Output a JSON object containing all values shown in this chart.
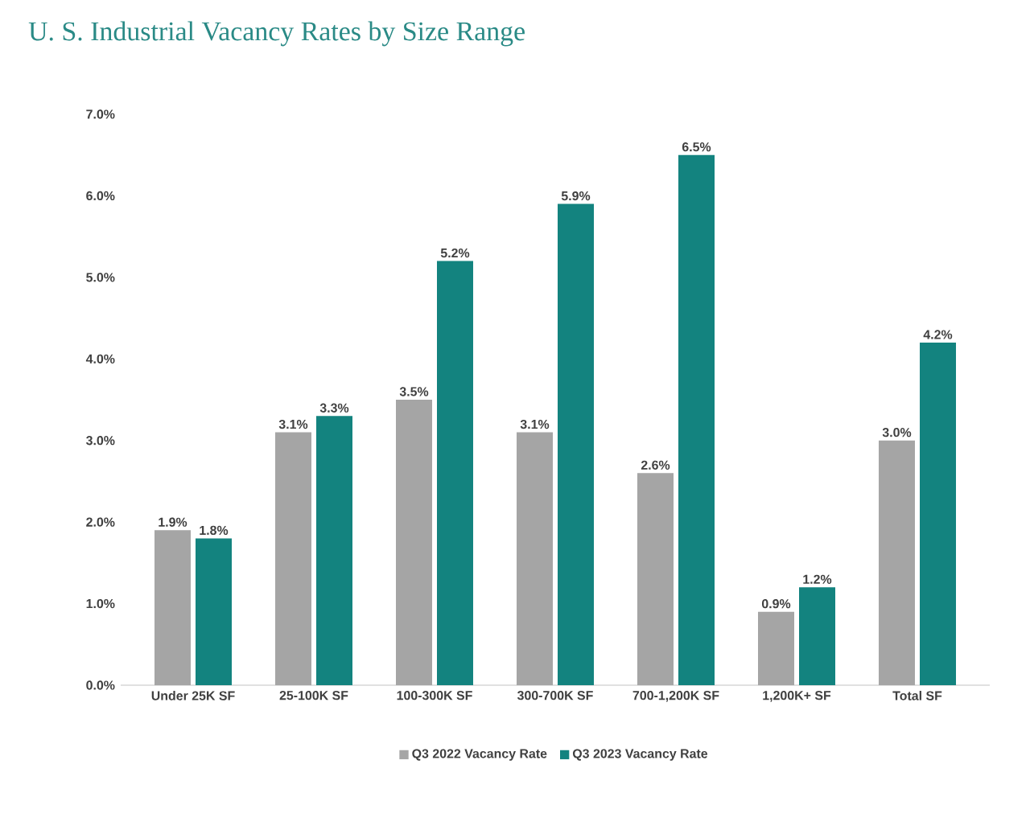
{
  "chart_data": {
    "type": "bar",
    "title": "U. S. Industrial Vacancy Rates by Size Range",
    "categories": [
      "Under 25K SF",
      "25-100K SF",
      "100-300K SF",
      "300-700K SF",
      "700-1,200K SF",
      "1,200K+ SF",
      "Total SF"
    ],
    "series": [
      {
        "name": "Q3 2022 Vacancy Rate",
        "color": "#a5a5a5",
        "values": [
          1.9,
          3.1,
          3.5,
          3.1,
          2.6,
          0.9,
          3.0
        ],
        "value_labels": [
          "1.9%",
          "3.1%",
          "3.5%",
          "3.1%",
          "2.6%",
          "0.9%",
          "3.0%"
        ]
      },
      {
        "name": "Q3 2023 Vacancy Rate",
        "color": "#13837f",
        "values": [
          1.8,
          3.3,
          5.2,
          5.9,
          6.5,
          1.2,
          4.2
        ],
        "value_labels": [
          "1.8%",
          "3.3%",
          "5.2%",
          "5.9%",
          "6.5%",
          "1.2%",
          "4.2%"
        ]
      }
    ],
    "ylim": [
      0,
      7
    ],
    "yticks": [
      {
        "value": 0,
        "label": "0.0%"
      },
      {
        "value": 1,
        "label": "1.0%"
      },
      {
        "value": 2,
        "label": "2.0%"
      },
      {
        "value": 3,
        "label": "3.0%"
      },
      {
        "value": 4,
        "label": "4.0%"
      },
      {
        "value": 5,
        "label": "5.0%"
      },
      {
        "value": 6,
        "label": "6.0%"
      },
      {
        "value": 7,
        "label": "7.0%"
      }
    ],
    "legend": "bottom"
  }
}
